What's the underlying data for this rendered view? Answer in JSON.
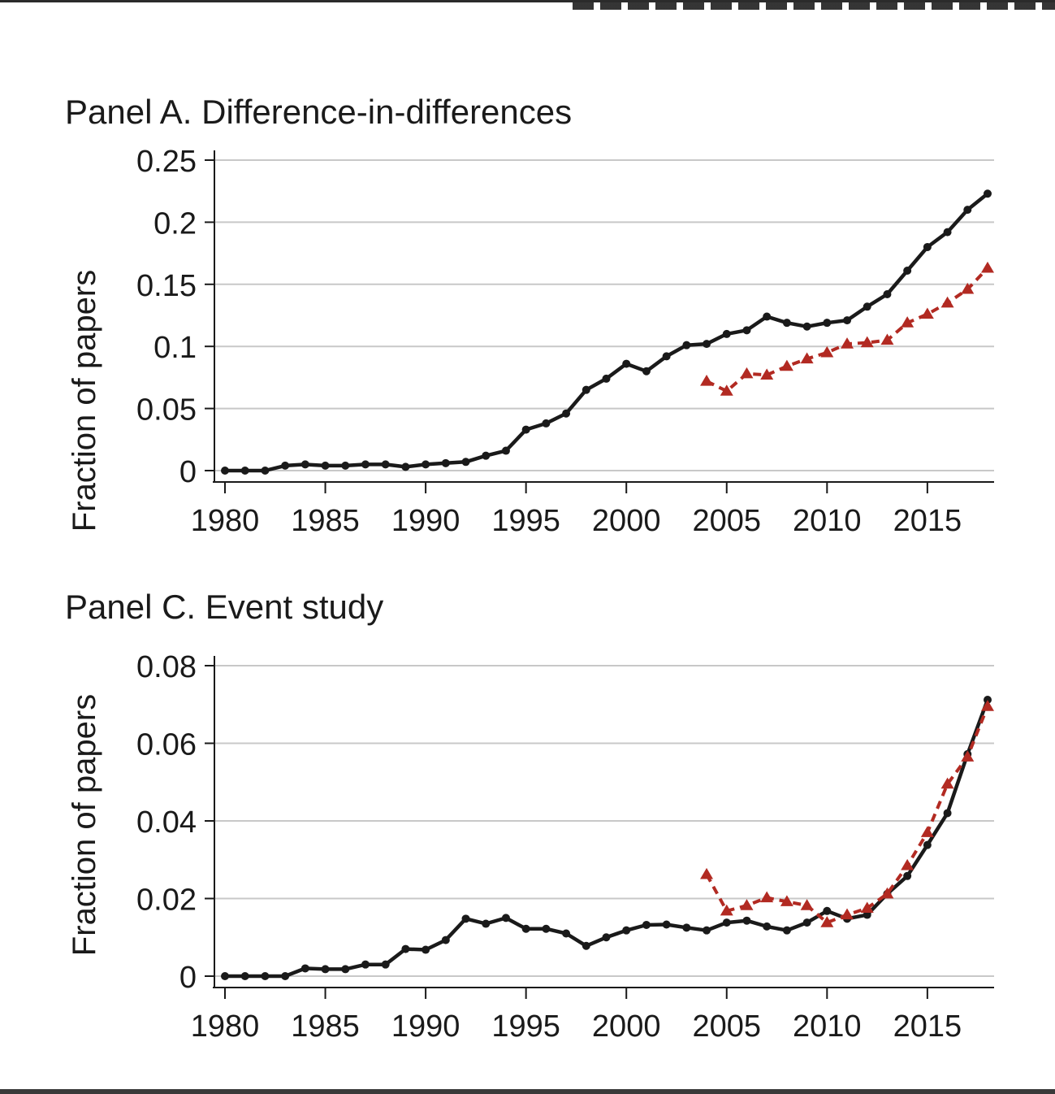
{
  "chart_data": [
    {
      "type": "line",
      "title": "Panel A. Difference-in-differences",
      "ylabel": "Fraction of papers",
      "xlabel": "",
      "xlim": [
        1980,
        2018
      ],
      "ylim": [
        0,
        0.25
      ],
      "xticks": [
        1980,
        1985,
        1990,
        1995,
        2000,
        2005,
        2010,
        2015
      ],
      "yticks": [
        0,
        0.05,
        0.1,
        0.15,
        0.2,
        0.25
      ],
      "ytick_labels": [
        "0",
        "0.05",
        "0.1",
        "0.15",
        "0.2",
        "0.25"
      ],
      "grid": "horizontal",
      "series": [
        {
          "color": "#1a1a1a",
          "style": "solid",
          "marker": "circle",
          "x": [
            1980,
            1981,
            1982,
            1983,
            1984,
            1985,
            1986,
            1987,
            1988,
            1989,
            1990,
            1991,
            1992,
            1993,
            1994,
            1995,
            1996,
            1997,
            1998,
            1999,
            2000,
            2001,
            2002,
            2003,
            2004,
            2005,
            2006,
            2007,
            2008,
            2009,
            2010,
            2011,
            2012,
            2013,
            2014,
            2015,
            2016,
            2017,
            2018
          ],
          "values": [
            0,
            0,
            0,
            0.004,
            0.005,
            0.004,
            0.004,
            0.005,
            0.005,
            0.003,
            0.005,
            0.006,
            0.007,
            0.012,
            0.016,
            0.033,
            0.038,
            0.046,
            0.065,
            0.074,
            0.086,
            0.08,
            0.092,
            0.101,
            0.102,
            0.11,
            0.113,
            0.124,
            0.119,
            0.116,
            0.119,
            0.121,
            0.132,
            0.142,
            0.161,
            0.18,
            0.192,
            0.21,
            0.223
          ]
        },
        {
          "color": "#b22a22",
          "style": "dashed",
          "marker": "triangle",
          "x": [
            2004,
            2005,
            2006,
            2007,
            2008,
            2009,
            2010,
            2011,
            2012,
            2013,
            2014,
            2015,
            2016,
            2017,
            2018
          ],
          "values": [
            0.072,
            0.064,
            0.078,
            0.077,
            0.084,
            0.09,
            0.095,
            0.102,
            0.103,
            0.105,
            0.119,
            0.126,
            0.135,
            0.146,
            0.163
          ]
        }
      ]
    },
    {
      "type": "line",
      "title": "Panel C. Event study",
      "ylabel": "Fraction of papers",
      "xlabel": "",
      "xlim": [
        1980,
        2018
      ],
      "ylim": [
        0,
        0.08
      ],
      "xticks": [
        1980,
        1985,
        1990,
        1995,
        2000,
        2005,
        2010,
        2015
      ],
      "yticks": [
        0,
        0.02,
        0.04,
        0.06,
        0.08
      ],
      "ytick_labels": [
        "0",
        "0.02",
        "0.04",
        "0.06",
        "0.08"
      ],
      "grid": "horizontal",
      "series": [
        {
          "color": "#1a1a1a",
          "style": "solid",
          "marker": "circle",
          "x": [
            1980,
            1981,
            1982,
            1983,
            1984,
            1985,
            1986,
            1987,
            1988,
            1989,
            1990,
            1991,
            1992,
            1993,
            1994,
            1995,
            1996,
            1997,
            1998,
            1999,
            2000,
            2001,
            2002,
            2003,
            2004,
            2005,
            2006,
            2007,
            2008,
            2009,
            2010,
            2011,
            2012,
            2013,
            2014,
            2015,
            2016,
            2017,
            2018
          ],
          "values": [
            0,
            0,
            0,
            0,
            0.002,
            0.0018,
            0.0018,
            0.003,
            0.003,
            0.007,
            0.0068,
            0.0093,
            0.0148,
            0.0135,
            0.015,
            0.0122,
            0.0122,
            0.011,
            0.0078,
            0.01,
            0.0118,
            0.0132,
            0.0133,
            0.0125,
            0.0118,
            0.0138,
            0.0143,
            0.0128,
            0.0118,
            0.0138,
            0.0168,
            0.0148,
            0.0158,
            0.0212,
            0.0258,
            0.0338,
            0.042,
            0.0572,
            0.0712
          ]
        },
        {
          "color": "#b22a22",
          "style": "dashed",
          "marker": "triangle",
          "x": [
            2004,
            2005,
            2006,
            2007,
            2008,
            2009,
            2010,
            2011,
            2012,
            2013,
            2014,
            2015,
            2016,
            2017,
            2018
          ],
          "values": [
            0.0262,
            0.0168,
            0.0182,
            0.0202,
            0.0192,
            0.0182,
            0.0138,
            0.0158,
            0.0175,
            0.0212,
            0.0285,
            0.037,
            0.0495,
            0.0565,
            0.0695
          ]
        }
      ]
    }
  ]
}
